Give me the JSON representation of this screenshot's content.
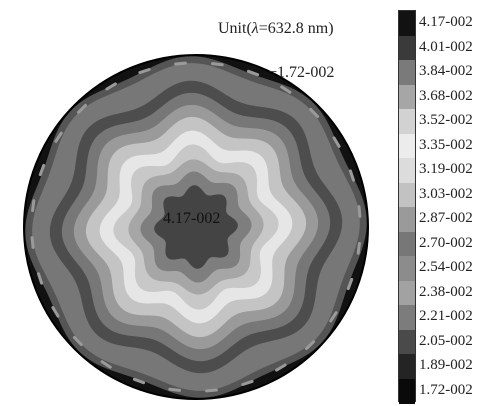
{
  "chart_data": {
    "type": "heatmap",
    "unit_text": {
      "prefix": "Unit(",
      "lambda": "λ",
      "suffix": "=632.8 nm)"
    },
    "min_annotation": "−1.72-002",
    "center_annotation": "4.17-002",
    "legend": {
      "levels": [
        "4.17-002",
        "4.01-002",
        "3.84-002",
        "3.68-002",
        "3.52-002",
        "3.35-002",
        "3.19-002",
        "3.03-002",
        "2.87-002",
        "2.70-002",
        "2.54-002",
        "2.38-002",
        "2.21-002",
        "2.05-002",
        "1.89-002",
        "1.72-002"
      ],
      "colors": [
        "#121212",
        "#3a3a3a",
        "#7a7a7a",
        "#a6a6a6",
        "#d2d2d2",
        "#ececec",
        "#dcdcdc",
        "#c2c2c2",
        "#9a9a9a",
        "#777777",
        "#8c8c8c",
        "#a2a2a2",
        "#7c7c7c",
        "#4a4a4a",
        "#242424",
        "#0a0a0a"
      ]
    },
    "rings": [
      {
        "color": "#111111",
        "radius": 1.0
      },
      {
        "color": "#555555",
        "radius": 0.97
      },
      {
        "color": "#777777",
        "radius": 0.93
      },
      {
        "color": "#4d4d4d",
        "radius": 0.81
      },
      {
        "color": "#777777",
        "radius": 0.74
      },
      {
        "color": "#9a9a9a",
        "radius": 0.67
      },
      {
        "color": "#c4c4c4",
        "radius": 0.6
      },
      {
        "color": "#e6e6e6",
        "radius": 0.52
      },
      {
        "color": "#c8c8c8",
        "radius": 0.44
      },
      {
        "color": "#a6a6a6",
        "radius": 0.37
      },
      {
        "color": "#7e7e7e",
        "radius": 0.3
      },
      {
        "color": "#444444",
        "radius": 0.22
      }
    ]
  }
}
